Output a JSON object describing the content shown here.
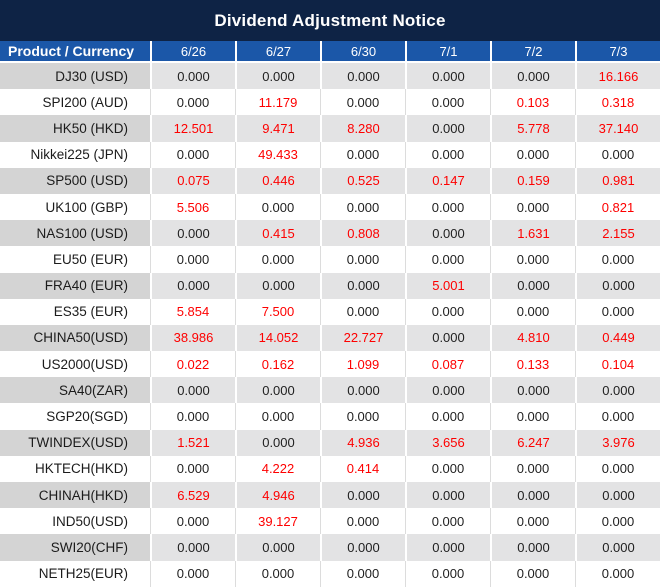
{
  "title": "Dividend Adjustment Notice",
  "chart_data": {
    "type": "table",
    "title": "Dividend Adjustment Notice",
    "columns": [
      "Product / Currency",
      "6/26",
      "6/27",
      "6/30",
      "7/1",
      "7/2",
      "7/3"
    ],
    "rows": [
      {
        "product": "DJ30 (USD)",
        "values": [
          "0.000",
          "0.000",
          "0.000",
          "0.000",
          "0.000",
          "16.166"
        ]
      },
      {
        "product": "SPI200 (AUD)",
        "values": [
          "0.000",
          "11.179",
          "0.000",
          "0.000",
          "0.103",
          "0.318"
        ]
      },
      {
        "product": "HK50 (HKD)",
        "values": [
          "12.501",
          "9.471",
          "8.280",
          "0.000",
          "5.778",
          "37.140"
        ]
      },
      {
        "product": "Nikkei225 (JPN)",
        "values": [
          "0.000",
          "49.433",
          "0.000",
          "0.000",
          "0.000",
          "0.000"
        ]
      },
      {
        "product": "SP500 (USD)",
        "values": [
          "0.075",
          "0.446",
          "0.525",
          "0.147",
          "0.159",
          "0.981"
        ]
      },
      {
        "product": "UK100 (GBP)",
        "values": [
          "5.506",
          "0.000",
          "0.000",
          "0.000",
          "0.000",
          "0.821"
        ]
      },
      {
        "product": "NAS100 (USD)",
        "values": [
          "0.000",
          "0.415",
          "0.808",
          "0.000",
          "1.631",
          "2.155"
        ]
      },
      {
        "product": "EU50 (EUR)",
        "values": [
          "0.000",
          "0.000",
          "0.000",
          "0.000",
          "0.000",
          "0.000"
        ]
      },
      {
        "product": "FRA40 (EUR)",
        "values": [
          "0.000",
          "0.000",
          "0.000",
          "5.001",
          "0.000",
          "0.000"
        ]
      },
      {
        "product": "ES35 (EUR)",
        "values": [
          "5.854",
          "7.500",
          "0.000",
          "0.000",
          "0.000",
          "0.000"
        ]
      },
      {
        "product": "CHINA50(USD)",
        "values": [
          "38.986",
          "14.052",
          "22.727",
          "0.000",
          "4.810",
          "0.449"
        ]
      },
      {
        "product": "US2000(USD)",
        "values": [
          "0.022",
          "0.162",
          "1.099",
          "0.087",
          "0.133",
          "0.104"
        ]
      },
      {
        "product": "SA40(ZAR)",
        "values": [
          "0.000",
          "0.000",
          "0.000",
          "0.000",
          "0.000",
          "0.000"
        ]
      },
      {
        "product": "SGP20(SGD)",
        "values": [
          "0.000",
          "0.000",
          "0.000",
          "0.000",
          "0.000",
          "0.000"
        ]
      },
      {
        "product": "TWINDEX(USD)",
        "values": [
          "1.521",
          "0.000",
          "4.936",
          "3.656",
          "6.247",
          "3.976"
        ]
      },
      {
        "product": "HKTECH(HKD)",
        "values": [
          "0.000",
          "4.222",
          "0.414",
          "0.000",
          "0.000",
          "0.000"
        ]
      },
      {
        "product": "CHINAH(HKD)",
        "values": [
          "6.529",
          "4.946",
          "0.000",
          "0.000",
          "0.000",
          "0.000"
        ]
      },
      {
        "product": "IND50(USD)",
        "values": [
          "0.000",
          "39.127",
          "0.000",
          "0.000",
          "0.000",
          "0.000"
        ]
      },
      {
        "product": "SWI20(CHF)",
        "values": [
          "0.000",
          "0.000",
          "0.000",
          "0.000",
          "0.000",
          "0.000"
        ]
      },
      {
        "product": "NETH25(EUR)",
        "values": [
          "0.000",
          "0.000",
          "0.000",
          "0.000",
          "0.000",
          "0.000"
        ]
      }
    ],
    "value_color_rule": "non-zero values shown in red, zero values in black"
  },
  "colors": {
    "title_bar_bg": "#0e2345",
    "header_bg": "#1b57a8",
    "row_alt_product_bg": "#d4d4d4",
    "row_alt_data_bg": "#e3e3e4",
    "row_bg": "#ffffff",
    "value_nonzero": "#fe0000",
    "value_zero": "#1f1f1f"
  }
}
